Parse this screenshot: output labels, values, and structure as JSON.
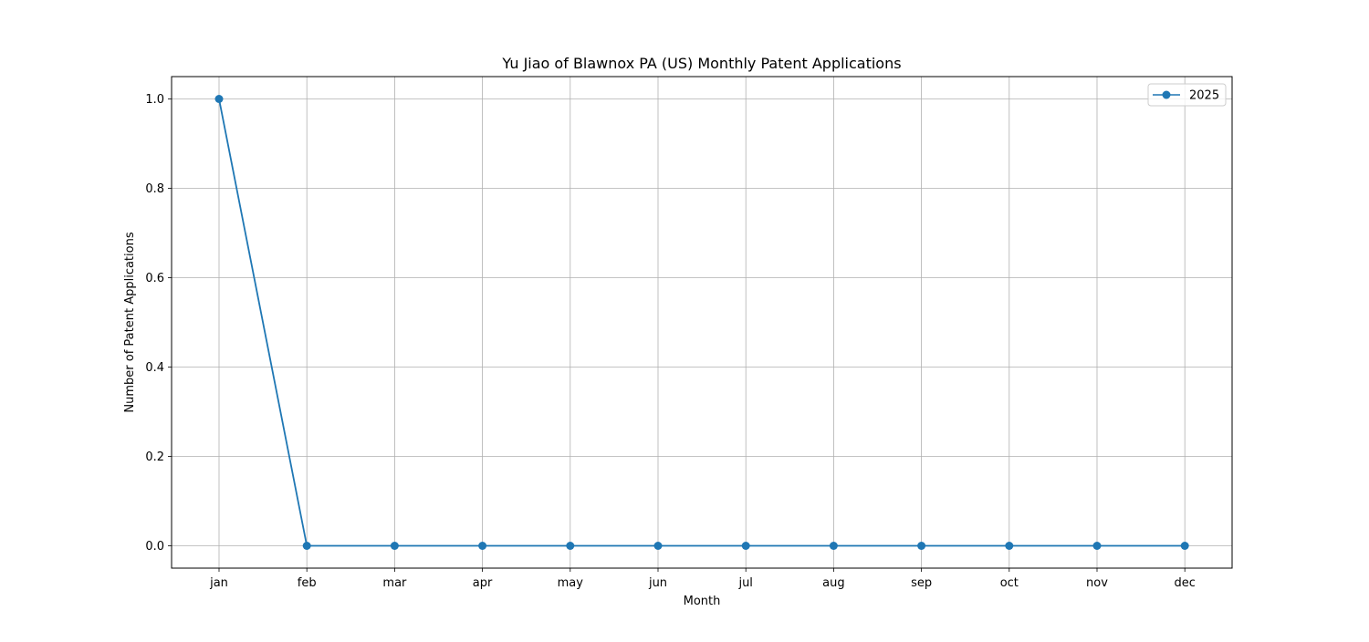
{
  "chart_data": {
    "type": "line",
    "title": "Yu Jiao of Blawnox PA (US) Monthly Patent Applications",
    "xlabel": "Month",
    "ylabel": "Number of Patent Applications",
    "categories": [
      "jan",
      "feb",
      "mar",
      "apr",
      "may",
      "jun",
      "jul",
      "aug",
      "sep",
      "oct",
      "nov",
      "dec"
    ],
    "series": [
      {
        "name": "2025",
        "values": [
          1,
          0,
          0,
          0,
          0,
          0,
          0,
          0,
          0,
          0,
          0,
          0
        ]
      }
    ],
    "yticks": [
      "0.0",
      "0.2",
      "0.4",
      "0.6",
      "0.8",
      "1.0"
    ],
    "ylim": [
      -0.05,
      1.05
    ],
    "grid": true,
    "legend_position": "top-right",
    "colors": {
      "series": "#1f77b4",
      "grid": "#b0b0b0"
    }
  }
}
